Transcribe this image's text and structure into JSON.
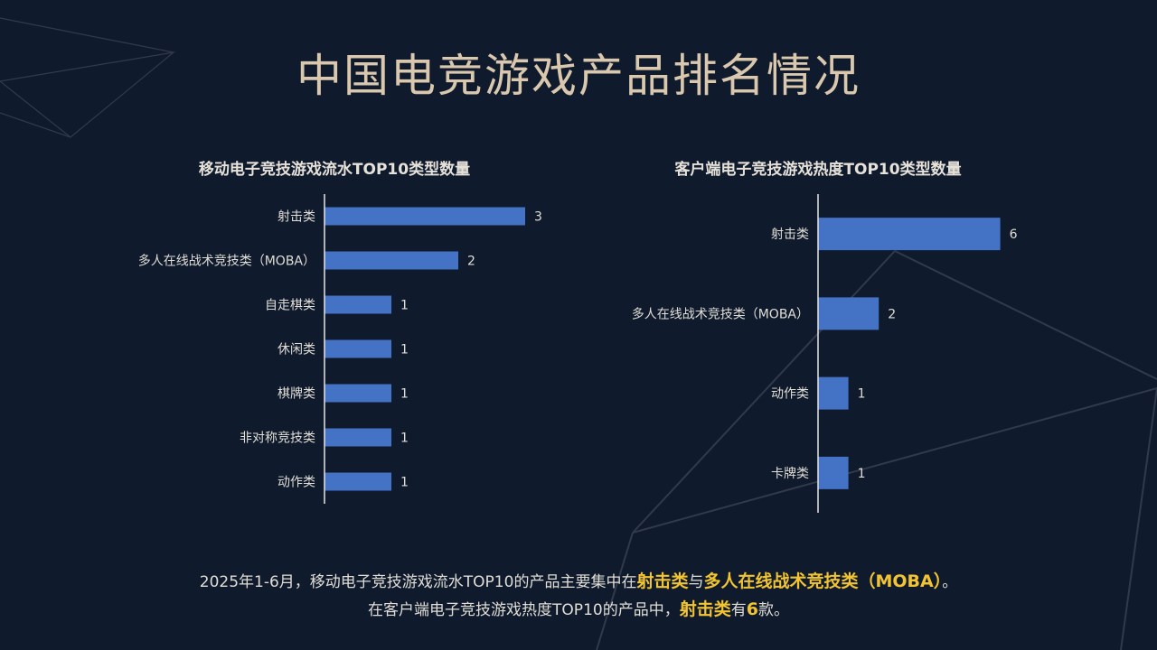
{
  "page": {
    "title": "中国电竞游戏产品排名情况"
  },
  "colors": {
    "background": "#0f1a2c",
    "bar": "#4472c4",
    "title": "#d9c8ae",
    "highlight": "#f2c431",
    "text": "#e0ddd6"
  },
  "chart_data": [
    {
      "type": "bar",
      "orientation": "horizontal",
      "title": "移动电子竞技游戏流水TOP10类型数量",
      "categories": [
        "射击类",
        "多人在线战术竞技类（MOBA）",
        "自走棋类",
        "休闲类",
        "棋牌类",
        "非对称竞技类",
        "动作类"
      ],
      "values": [
        3,
        2,
        1,
        1,
        1,
        1,
        1
      ],
      "data_labels": true,
      "grid": false
    },
    {
      "type": "bar",
      "orientation": "horizontal",
      "title": "客户端电子竞技游戏热度TOP10类型数量",
      "categories": [
        "射击类",
        "多人在线战术竞技类（MOBA）",
        "动作类",
        "卡牌类"
      ],
      "values": [
        6,
        2,
        1,
        1
      ],
      "data_labels": true,
      "grid": false
    }
  ],
  "footer": {
    "line1": {
      "prefix": "2025年1-6月，移动电子竞技游戏流水TOP10的产品主要集中在",
      "hl1": "射击类",
      "mid": "与",
      "hl2": "多人在线战术竞技类（MOBA）",
      "suffix": "。"
    },
    "line2": {
      "prefix": "在客户端电子竞技游戏热度TOP10的产品中，",
      "hl1": "射击类",
      "mid": "有",
      "hl2": "6",
      "suffix": "款。"
    }
  }
}
